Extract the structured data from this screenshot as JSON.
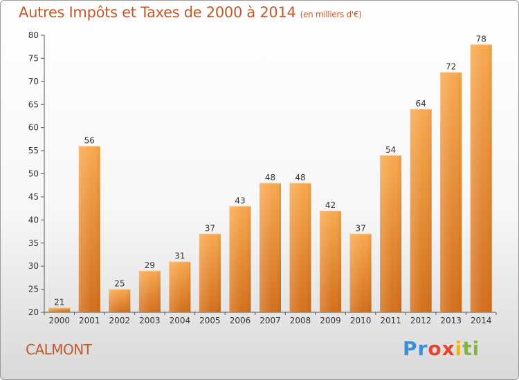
{
  "title": "Autres Impôts et Taxes de 2000 à 2014",
  "unit": "(en milliers d'€)",
  "city": "CALMONT",
  "brand": {
    "letters": [
      "P",
      "r",
      "o",
      "x",
      "i",
      "t",
      "i"
    ],
    "colors": [
      "#3a8fd9",
      "#3a8fd9",
      "#e8432e",
      "#e8432e",
      "#f1b21e",
      "#7cbb32",
      "#7cbb32"
    ]
  },
  "colors": {
    "bar_light": "#f7a54e",
    "bar_dark": "#d9751f",
    "axis": "#555555",
    "grid": "#cccccc",
    "title": "#c0582c"
  },
  "chart_data": {
    "type": "bar",
    "title": "Autres Impôts et Taxes de 2000 à 2014",
    "categories": [
      "2000",
      "2001",
      "2002",
      "2003",
      "2004",
      "2005",
      "2006",
      "2007",
      "2008",
      "2009",
      "2010",
      "2011",
      "2012",
      "2013",
      "2014"
    ],
    "values": [
      21,
      56,
      25,
      29,
      31,
      37,
      43,
      48,
      48,
      42,
      37,
      54,
      64,
      72,
      78
    ],
    "ylim": [
      20,
      80
    ],
    "yticks": [
      20,
      25,
      30,
      35,
      40,
      45,
      50,
      55,
      60,
      65,
      70,
      75,
      80
    ],
    "xlabel": "",
    "ylabel": "",
    "grid": false,
    "legend": "none"
  }
}
